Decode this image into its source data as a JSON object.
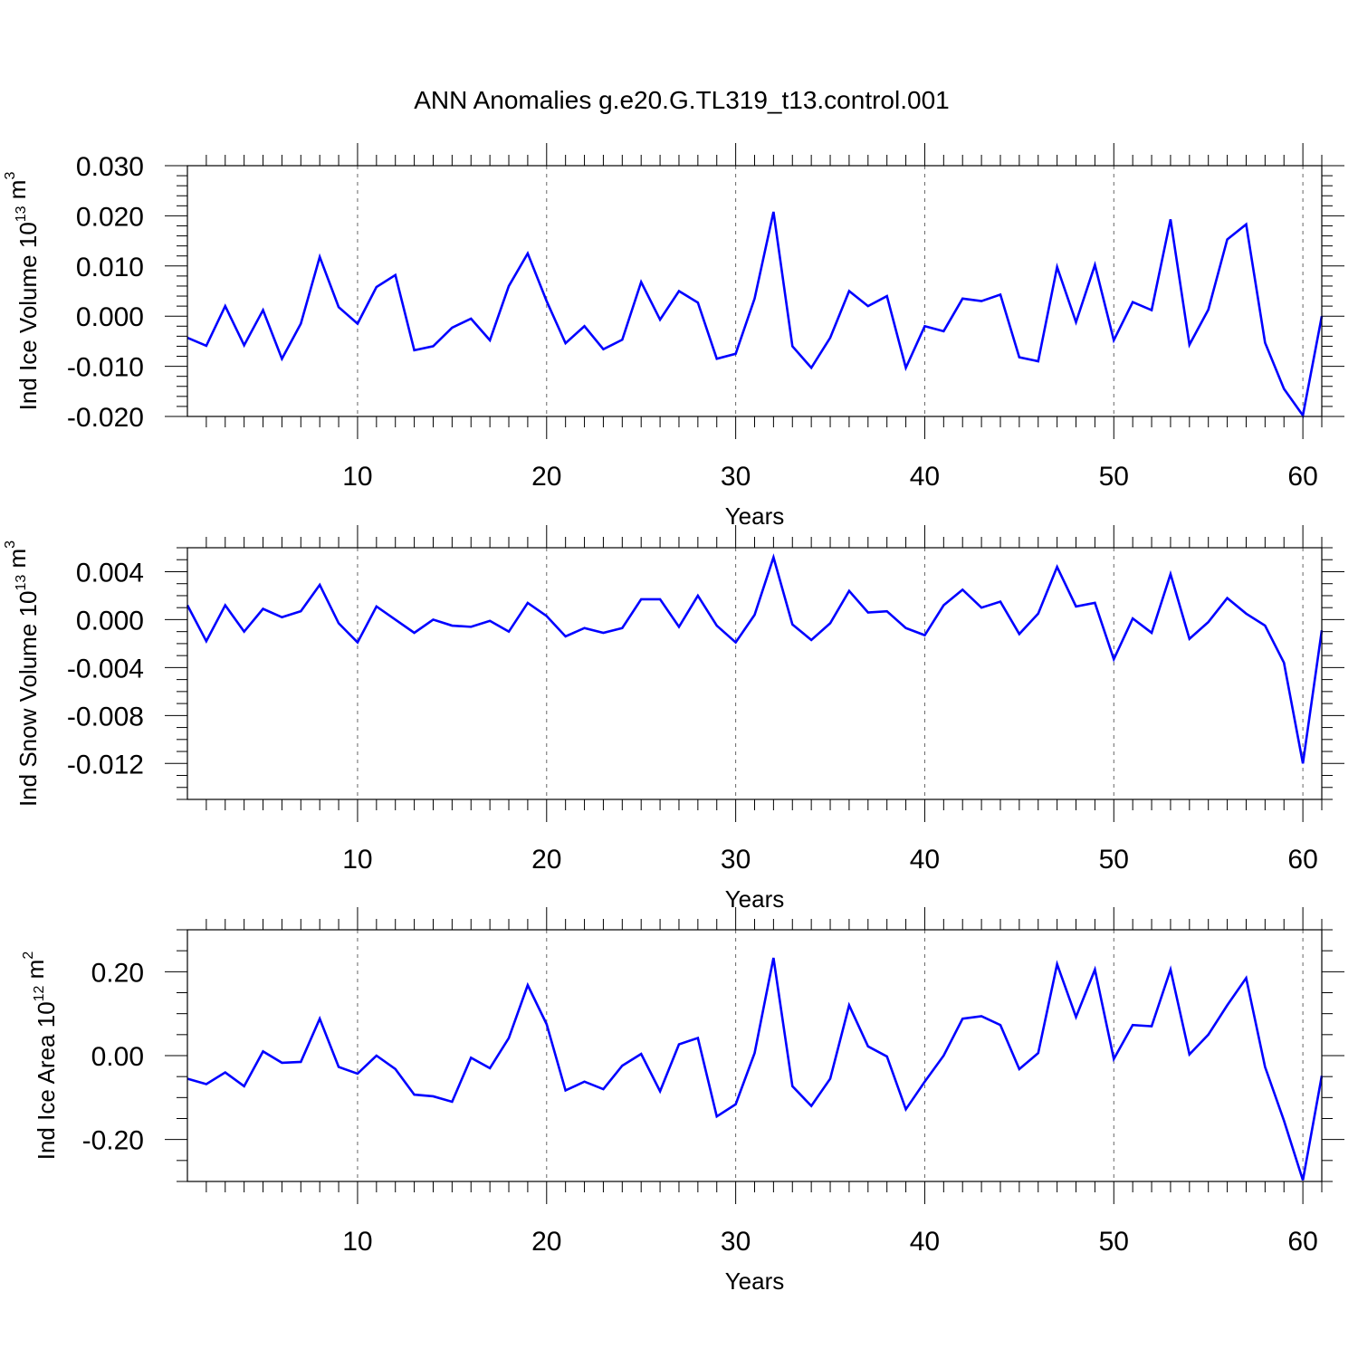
{
  "title": "ANN Anomalies g.e20.G.TL319_t13.control.001",
  "colors": {
    "series_line": "#0000ff",
    "frame": "#000000",
    "gridline": "#666666"
  },
  "chart_data": [
    {
      "type": "line",
      "ylabel_prefix": "Ind Ice Volume 10",
      "ylabel_exp": "13",
      "ylabel_unit": " m",
      "ylabel_unit_exp": "3",
      "xlabel": "Years",
      "xlim": [
        1,
        61
      ],
      "ylim": [
        -0.02,
        0.03
      ],
      "y_ticks": [
        {
          "value": -0.02,
          "label": "-0.020"
        },
        {
          "value": -0.01,
          "label": "-0.010"
        },
        {
          "value": 0.0,
          "label": "0.000"
        },
        {
          "value": 0.01,
          "label": "0.010"
        },
        {
          "value": 0.02,
          "label": "0.020"
        },
        {
          "value": 0.03,
          "label": "0.030"
        }
      ],
      "y_minor_step": 0.002,
      "x_ticks": [
        {
          "value": 10,
          "label": "10"
        },
        {
          "value": 20,
          "label": "20"
        },
        {
          "value": 30,
          "label": "30"
        },
        {
          "value": 40,
          "label": "40"
        },
        {
          "value": 50,
          "label": "50"
        },
        {
          "value": 60,
          "label": "60"
        }
      ],
      "x_minor_step": 2,
      "grid_x": [
        10,
        20,
        30,
        40,
        50,
        60
      ],
      "x": [
        1,
        2,
        3,
        4,
        5,
        6,
        7,
        8,
        9,
        10,
        11,
        12,
        13,
        14,
        15,
        16,
        17,
        18,
        19,
        20,
        21,
        22,
        23,
        24,
        25,
        26,
        27,
        28,
        29,
        30,
        31,
        32,
        33,
        34,
        35,
        36,
        37,
        38,
        39,
        40,
        41,
        42,
        43,
        44,
        45,
        46,
        47,
        48,
        49,
        50,
        51,
        52,
        53,
        54,
        55,
        56,
        57,
        58,
        59,
        60,
        61
      ],
      "series": [
        {
          "values": [
            -0.0043,
            -0.0059,
            0.002,
            -0.0058,
            0.0012,
            -0.0085,
            -0.0015,
            0.0118,
            0.0018,
            -0.0015,
            0.0058,
            0.0082,
            -0.0068,
            -0.006,
            -0.0023,
            -0.0005,
            -0.0048,
            0.006,
            0.0125,
            0.003,
            -0.0054,
            -0.002,
            -0.0066,
            -0.0047,
            0.0068,
            -0.0007,
            0.005,
            0.0027,
            -0.0085,
            -0.0075,
            0.0035,
            0.0208,
            -0.006,
            -0.0103,
            -0.0043,
            0.005,
            0.002,
            0.004,
            -0.0103,
            -0.002,
            -0.003,
            0.0035,
            0.003,
            0.0043,
            -0.0082,
            -0.009,
            0.0098,
            -0.0012,
            0.0102,
            -0.0048,
            0.0028,
            0.0012,
            0.0193,
            -0.0057,
            0.0013,
            0.0153,
            0.0183,
            -0.0053,
            -0.0145,
            -0.0198,
            0.0
          ]
        }
      ]
    },
    {
      "type": "line",
      "ylabel_prefix": "Ind Snow Volume 10",
      "ylabel_exp": "13",
      "ylabel_unit": " m",
      "ylabel_unit_exp": "3",
      "xlabel": "Years",
      "xlim": [
        1,
        61
      ],
      "ylim": [
        -0.015,
        0.006
      ],
      "y_ticks": [
        {
          "value": -0.012,
          "label": "-0.012"
        },
        {
          "value": -0.008,
          "label": "-0.008"
        },
        {
          "value": -0.004,
          "label": "-0.004"
        },
        {
          "value": 0.0,
          "label": "0.000"
        },
        {
          "value": 0.004,
          "label": "0.004"
        }
      ],
      "y_minor_step": 0.001,
      "x_ticks": [
        {
          "value": 10,
          "label": "10"
        },
        {
          "value": 20,
          "label": "20"
        },
        {
          "value": 30,
          "label": "30"
        },
        {
          "value": 40,
          "label": "40"
        },
        {
          "value": 50,
          "label": "50"
        },
        {
          "value": 60,
          "label": "60"
        }
      ],
      "x_minor_step": 2,
      "grid_x": [
        10,
        20,
        30,
        40,
        50,
        60
      ],
      "x": [
        1,
        2,
        3,
        4,
        5,
        6,
        7,
        8,
        9,
        10,
        11,
        12,
        13,
        14,
        15,
        16,
        17,
        18,
        19,
        20,
        21,
        22,
        23,
        24,
        25,
        26,
        27,
        28,
        29,
        30,
        31,
        32,
        33,
        34,
        35,
        36,
        37,
        38,
        39,
        40,
        41,
        42,
        43,
        44,
        45,
        46,
        47,
        48,
        49,
        50,
        51,
        52,
        53,
        54,
        55,
        56,
        57,
        58,
        59,
        60,
        61
      ],
      "series": [
        {
          "values": [
            0.0012,
            -0.0018,
            0.0012,
            -0.001,
            0.0009,
            0.0002,
            0.0007,
            0.0029,
            -0.0003,
            -0.0019,
            0.0011,
            0.0,
            -0.0011,
            0.0,
            -0.0005,
            -0.0006,
            -0.0001,
            -0.001,
            0.0014,
            0.0003,
            -0.0014,
            -0.0007,
            -0.0011,
            -0.0007,
            0.0017,
            0.0017,
            -0.0006,
            0.002,
            -0.0005,
            -0.0019,
            0.0004,
            0.0052,
            -0.0004,
            -0.0017,
            -0.0003,
            0.0024,
            0.0006,
            0.0007,
            -0.0007,
            -0.0013,
            0.0012,
            0.0025,
            0.001,
            0.0015,
            -0.0012,
            0.0005,
            0.0044,
            0.0011,
            0.0014,
            -0.0033,
            0.0001,
            -0.0011,
            0.0038,
            -0.0016,
            -0.0002,
            0.0018,
            0.0005,
            -0.0005,
            -0.0036,
            -0.012,
            -0.0009
          ]
        }
      ]
    },
    {
      "type": "line",
      "ylabel_prefix": "Ind Ice Area 10",
      "ylabel_exp": "12",
      "ylabel_unit": " m",
      "ylabel_unit_exp": "2",
      "xlabel": "Years",
      "xlim": [
        1,
        61
      ],
      "ylim": [
        -0.3,
        0.3
      ],
      "y_ticks": [
        {
          "value": -0.2,
          "label": "-0.20"
        },
        {
          "value": 0.0,
          "label": "0.00"
        },
        {
          "value": 0.2,
          "label": "0.20"
        }
      ],
      "y_minor_step": 0.05,
      "x_ticks": [
        {
          "value": 10,
          "label": "10"
        },
        {
          "value": 20,
          "label": "20"
        },
        {
          "value": 30,
          "label": "30"
        },
        {
          "value": 40,
          "label": "40"
        },
        {
          "value": 50,
          "label": "50"
        },
        {
          "value": 60,
          "label": "60"
        }
      ],
      "x_minor_step": 2,
      "grid_x": [
        10,
        20,
        30,
        40,
        50,
        60
      ],
      "x": [
        1,
        2,
        3,
        4,
        5,
        6,
        7,
        8,
        9,
        10,
        11,
        12,
        13,
        14,
        15,
        16,
        17,
        18,
        19,
        20,
        21,
        22,
        23,
        24,
        25,
        26,
        27,
        28,
        29,
        30,
        31,
        32,
        33,
        34,
        35,
        36,
        37,
        38,
        39,
        40,
        41,
        42,
        43,
        44,
        45,
        46,
        47,
        48,
        49,
        50,
        51,
        52,
        53,
        54,
        55,
        56,
        57,
        58,
        59,
        60,
        61
      ],
      "series": [
        {
          "values": [
            -0.055,
            -0.068,
            -0.04,
            -0.073,
            0.01,
            -0.017,
            -0.015,
            0.088,
            -0.027,
            -0.043,
            0.0,
            -0.032,
            -0.093,
            -0.097,
            -0.11,
            -0.005,
            -0.03,
            0.042,
            0.168,
            0.075,
            -0.083,
            -0.062,
            -0.08,
            -0.024,
            0.004,
            -0.085,
            0.027,
            0.042,
            -0.145,
            -0.116,
            0.006,
            0.233,
            -0.073,
            -0.12,
            -0.055,
            0.12,
            0.022,
            -0.002,
            -0.128,
            -0.062,
            0.0,
            0.088,
            0.094,
            0.073,
            -0.032,
            0.006,
            0.218,
            0.092,
            0.205,
            -0.008,
            0.073,
            0.07,
            0.205,
            0.003,
            0.05,
            0.12,
            0.185,
            -0.027,
            -0.155,
            -0.297,
            -0.048
          ]
        }
      ]
    }
  ]
}
